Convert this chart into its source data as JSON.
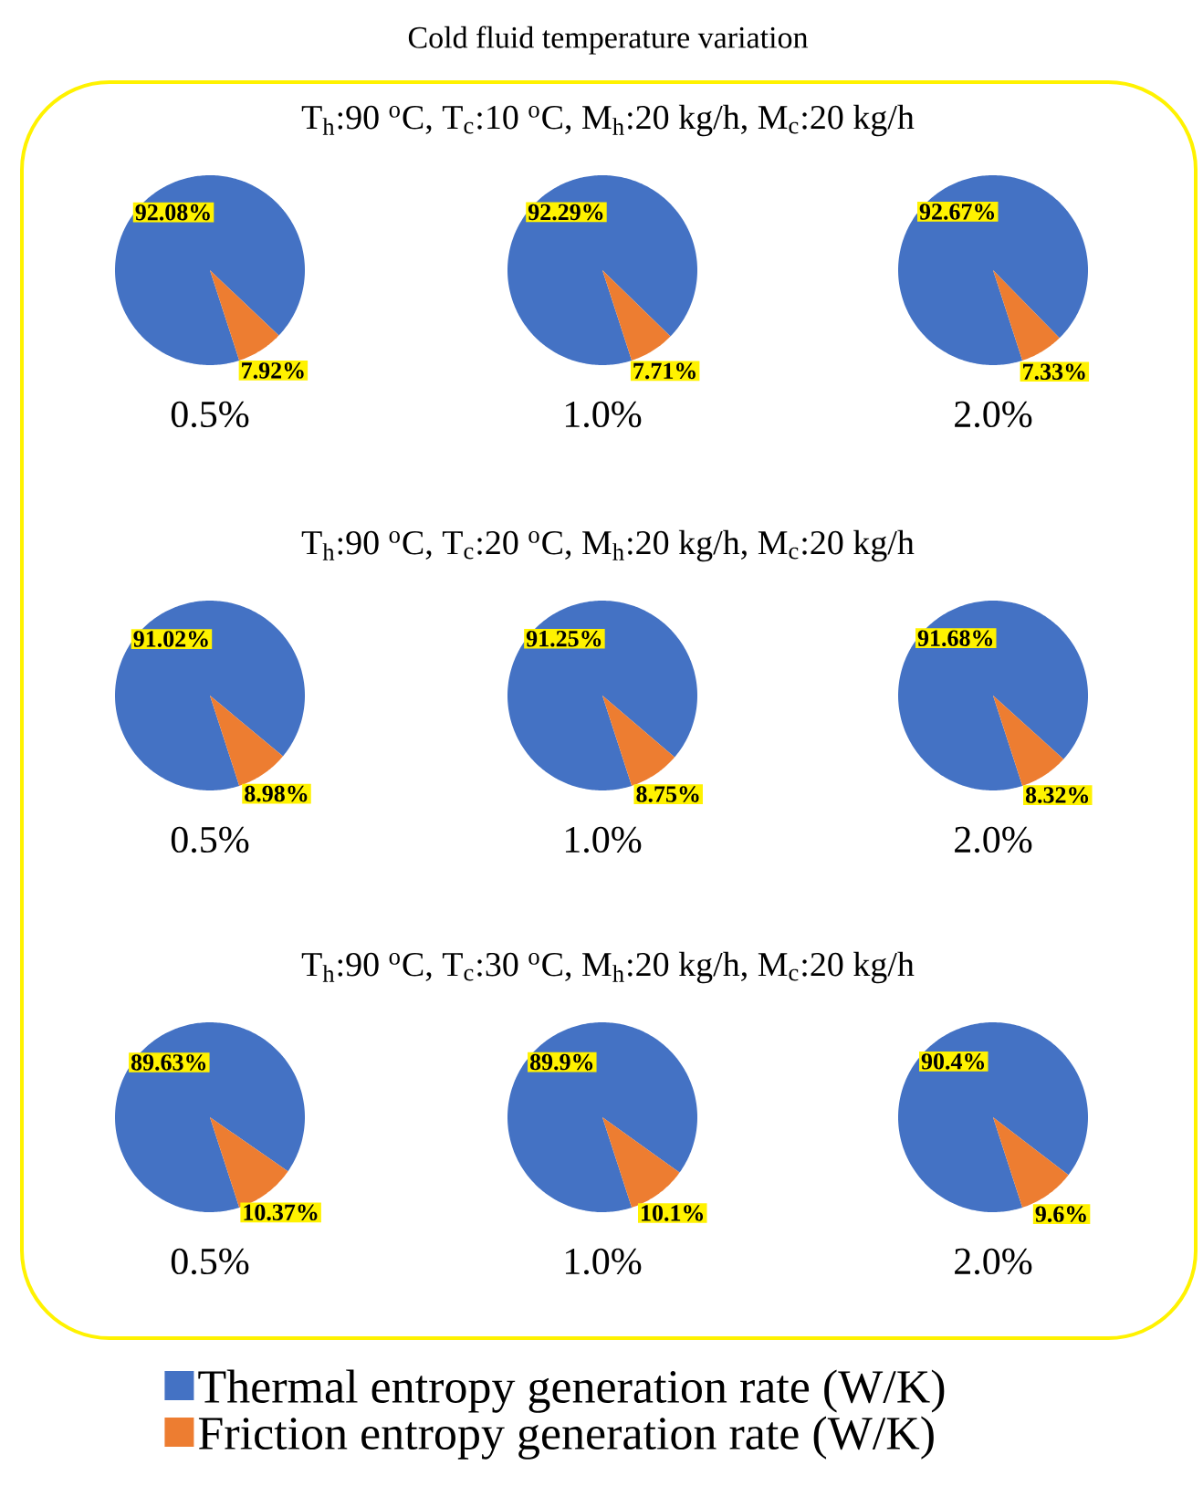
{
  "chart_data": [
    {
      "type": "pie",
      "subtitle": "T$_{h}$:90 $^{o}$C, T$_{c}$:10 $^{o}$C, M$_{h}$:20 kg/h, M$_{c}$:20 kg/h",
      "categories": [
        null,
        null
      ],
      "values": [
        92.08,
        7.92
      ],
      "colors": [
        "#4472c4",
        "#ed7d31"
      ],
      "value_labels": [
        "92.08%",
        "7.92%"
      ],
      "xlabel": "0.5%"
    },
    {
      "type": "pie",
      "title": "Cold fluid temperature variation",
      "categories": [
        null,
        null
      ],
      "values": [
        92.29,
        7.71
      ],
      "colors": [
        "#4472c4",
        "#ed7d31"
      ],
      "value_labels": [
        "92.29%",
        "7.71%"
      ],
      "xlabel": "1.0%"
    },
    {
      "type": "pie",
      "categories": [
        null,
        null
      ],
      "values": [
        92.67,
        7.33
      ],
      "colors": [
        "#4472c4",
        "#ed7d31"
      ],
      "value_labels": [
        "92.67%",
        "7.33%"
      ],
      "xlabel": "2.0%"
    },
    {
      "type": "pie",
      "subtitle": "T$_{h}$:90 $^{o}$C, T$_{c}$:20 $^{o}$C, M$_{h}$:20 kg/h, M$_{c}$:20 kg/h",
      "categories": [
        null,
        null
      ],
      "values": [
        91.02,
        8.98
      ],
      "colors": [
        "#4472c4",
        "#ed7d31"
      ],
      "value_labels": [
        "91.02%",
        "8.98%"
      ],
      "xlabel": "0.5%"
    },
    {
      "type": "pie",
      "categories": [
        null,
        null
      ],
      "values": [
        91.25,
        8.75
      ],
      "colors": [
        "#4472c4",
        "#ed7d31"
      ],
      "value_labels": [
        "91.25%",
        "8.75%"
      ],
      "xlabel": "1.0%"
    },
    {
      "type": "pie",
      "categories": [
        null,
        null
      ],
      "values": [
        91.68,
        8.32
      ],
      "colors": [
        "#4472c4",
        "#ed7d31"
      ],
      "value_labels": [
        "91.68%",
        "8.32%"
      ],
      "xlabel": "2.0%"
    },
    {
      "type": "pie",
      "subtitle": "T$_{h}$:90 $^{o}$C, T$_{c}$:30 $^{o}$C, M$_{h}$:20 kg/h, M$_{c}$:20 kg/h",
      "categories": [
        null,
        null
      ],
      "values": [
        89.63,
        10.37
      ],
      "colors": [
        "#4472c4",
        "#ed7d31"
      ],
      "value_labels": [
        "89.63%",
        "10.37%"
      ],
      "xlabel": "0.5%"
    },
    {
      "type": "pie",
      "categories": [
        null,
        null
      ],
      "values": [
        89.9,
        10.1
      ],
      "colors": [
        "#4472c4",
        "#ed7d31"
      ],
      "value_labels": [
        "89.9%",
        "10.1%"
      ],
      "xlabel": "1.0%"
    },
    {
      "type": "pie",
      "categories": [
        "Thermal entropy generation rate (W/K)",
        "Friction entropy generation rate (W/K)"
      ],
      "values": [
        90.4,
        9.6
      ],
      "colors": [
        "#4472c4",
        "#ed7d31"
      ],
      "value_labels": [
        "90.4%",
        "9.6%"
      ],
      "xlabel": "2.0%",
      "legend": "bottom"
    }
  ]
}
